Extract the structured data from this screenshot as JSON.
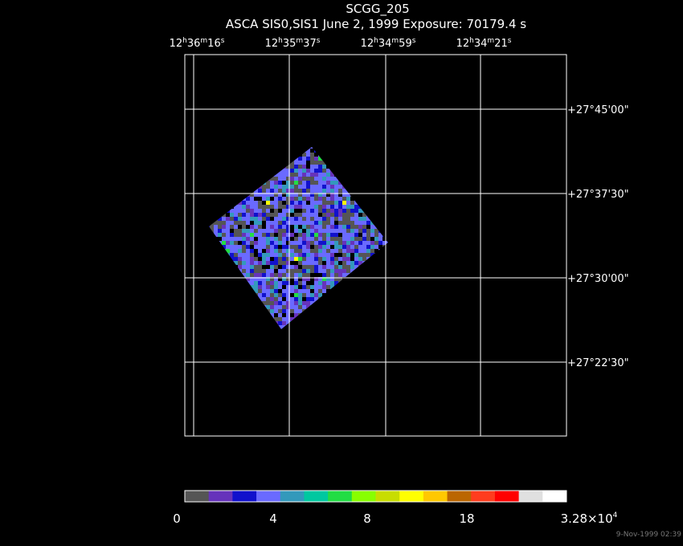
{
  "title": "SCGG_205",
  "subtitle": "ASCA SIS0,SIS1 June 2, 1999 Exposure: 70179.4 s",
  "ra_labels": [
    [
      "12",
      "h",
      "36",
      "m",
      "16",
      "s"
    ],
    [
      "12",
      "h",
      "35",
      "m",
      "37",
      "s"
    ],
    [
      "12",
      "h",
      "34",
      "m",
      "59",
      "s"
    ],
    [
      "12",
      "h",
      "34",
      "m",
      "21",
      "s"
    ]
  ],
  "dec_labels": [
    "+27°45'00\"",
    "+27°37'30\"",
    "+27°30'00\"",
    "+27°22'30\""
  ],
  "colorbar": {
    "colors": [
      "#555555",
      "#6633bb",
      "#1111cc",
      "#6a6aff",
      "#3399bb",
      "#00c8a0",
      "#22dd44",
      "#88ff00",
      "#c8dd00",
      "#ffff00",
      "#ffc800",
      "#bb6600",
      "#ff3c1e",
      "#ff0000",
      "#e0e0e0",
      "#ffffff"
    ],
    "labels": [
      "0",
      "4",
      "8",
      "18"
    ],
    "max_label": [
      "3.28×10",
      "4"
    ]
  },
  "timestamp": "9-Nov-1999 02:39"
}
